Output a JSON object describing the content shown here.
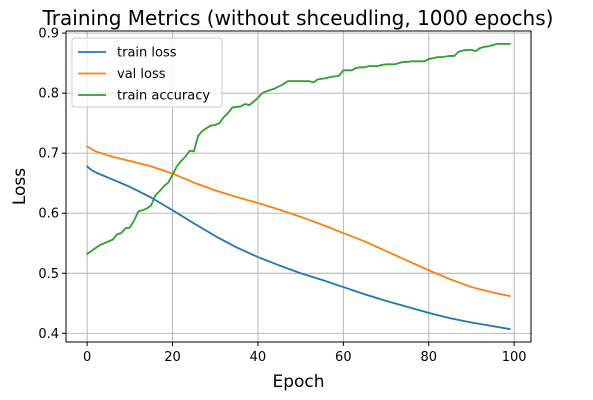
{
  "chart_data": {
    "type": "line",
    "title": "Training Metrics (without shceudling, 1000 epochs)",
    "xlabel": "Epoch",
    "ylabel": "Loss",
    "xlim": [
      -4.95,
      103.95
    ],
    "ylim": [
      0.3855,
      0.9035
    ],
    "xticks": [
      0,
      20,
      40,
      60,
      80,
      100
    ],
    "yticks": [
      0.4,
      0.5,
      0.6,
      0.7,
      0.8,
      0.9
    ],
    "xtick_labels": [
      "0",
      "20",
      "40",
      "60",
      "80",
      "100"
    ],
    "ytick_labels": [
      "0.4",
      "0.5",
      "0.6",
      "0.7",
      "0.8",
      "0.9"
    ],
    "grid": true,
    "legend_position": "top-left",
    "series": [
      {
        "name": "train loss",
        "color": "#1f77b4",
        "x": [
          0,
          1,
          2,
          5,
          10,
          15,
          20,
          25,
          30,
          35,
          40,
          45,
          50,
          55,
          60,
          65,
          70,
          75,
          80,
          85,
          90,
          95,
          99
        ],
        "y": [
          0.678,
          0.672,
          0.668,
          0.659,
          0.644,
          0.626,
          0.605,
          0.583,
          0.562,
          0.543,
          0.527,
          0.513,
          0.5,
          0.489,
          0.477,
          0.465,
          0.454,
          0.444,
          0.434,
          0.425,
          0.418,
          0.412,
          0.407
        ]
      },
      {
        "name": "val loss",
        "color": "#ff7f0e",
        "x": [
          0,
          1,
          2,
          5,
          10,
          15,
          20,
          25,
          30,
          35,
          40,
          45,
          50,
          55,
          60,
          65,
          70,
          75,
          80,
          85,
          90,
          95,
          99
        ],
        "y": [
          0.711,
          0.707,
          0.703,
          0.696,
          0.687,
          0.678,
          0.666,
          0.651,
          0.638,
          0.627,
          0.617,
          0.606,
          0.594,
          0.581,
          0.567,
          0.553,
          0.537,
          0.521,
          0.505,
          0.49,
          0.477,
          0.468,
          0.462
        ]
      },
      {
        "name": "train accuracy",
        "color": "#2ca02c",
        "x": [
          0,
          2,
          3,
          4,
          6,
          7,
          8,
          9,
          10,
          11,
          12,
          13,
          14,
          15,
          16,
          17,
          18,
          19,
          20,
          21,
          22,
          23,
          24,
          25,
          26,
          27,
          28,
          29,
          30,
          31,
          32,
          33,
          34,
          35,
          36,
          37,
          38,
          39,
          40,
          41,
          42,
          44,
          46,
          47,
          48,
          52,
          53,
          54,
          56,
          57,
          58,
          59,
          60,
          61,
          62,
          63,
          64,
          65,
          66,
          67,
          68,
          69,
          70,
          71,
          72,
          73,
          74,
          75,
          76,
          78,
          79,
          80,
          81,
          82,
          83,
          84,
          85,
          86,
          87,
          88,
          89,
          90,
          91,
          92,
          93,
          94,
          95,
          96,
          97,
          98,
          99
        ],
        "y": [
          0.532,
          0.542,
          0.547,
          0.55,
          0.556,
          0.565,
          0.567,
          0.575,
          0.576,
          0.588,
          0.603,
          0.605,
          0.608,
          0.613,
          0.63,
          0.637,
          0.645,
          0.651,
          0.664,
          0.678,
          0.687,
          0.694,
          0.704,
          0.703,
          0.729,
          0.737,
          0.742,
          0.746,
          0.747,
          0.75,
          0.76,
          0.767,
          0.776,
          0.777,
          0.778,
          0.782,
          0.78,
          0.786,
          0.792,
          0.8,
          0.803,
          0.808,
          0.815,
          0.82,
          0.82,
          0.82,
          0.818,
          0.823,
          0.825,
          0.827,
          0.828,
          0.829,
          0.838,
          0.838,
          0.838,
          0.842,
          0.843,
          0.843,
          0.845,
          0.845,
          0.845,
          0.847,
          0.848,
          0.848,
          0.848,
          0.85,
          0.852,
          0.852,
          0.853,
          0.853,
          0.853,
          0.857,
          0.858,
          0.86,
          0.86,
          0.861,
          0.862,
          0.862,
          0.869,
          0.871,
          0.872,
          0.872,
          0.87,
          0.875,
          0.877,
          0.878,
          0.88,
          0.882,
          0.882,
          0.882,
          0.882
        ]
      }
    ]
  }
}
